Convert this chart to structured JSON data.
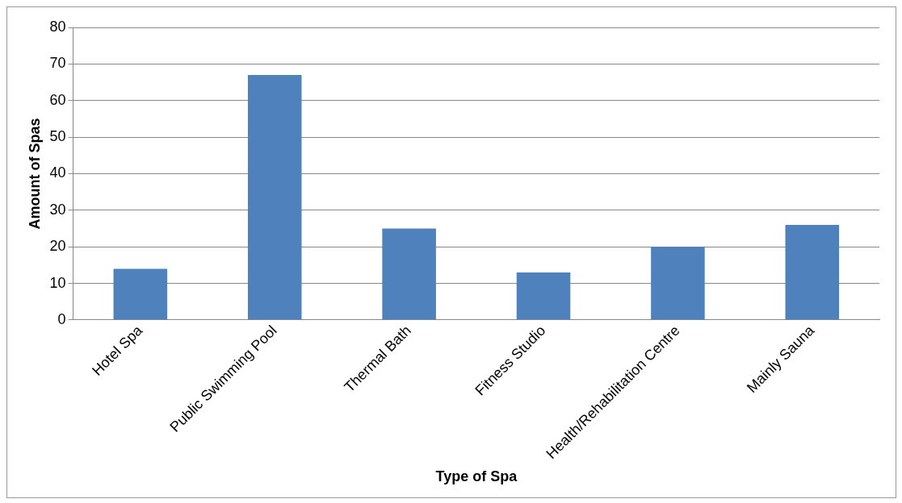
{
  "chart_data": {
    "type": "bar",
    "xlabel": "Type of Spa",
    "ylabel": "Amount of Spas",
    "categories": [
      "Hotel Spa",
      "Public Swimming Pool",
      "Thermal Bath",
      "Fitness Studio",
      "Health/Rehabilitation Centre",
      "Mainly Sauna"
    ],
    "values": [
      14,
      67,
      25,
      13,
      20,
      26
    ],
    "color": "#4f81bd",
    "ylim": [
      0,
      80
    ],
    "yticks": [
      0,
      10,
      20,
      30,
      40,
      50,
      60,
      70,
      80
    ],
    "grid": "y"
  }
}
